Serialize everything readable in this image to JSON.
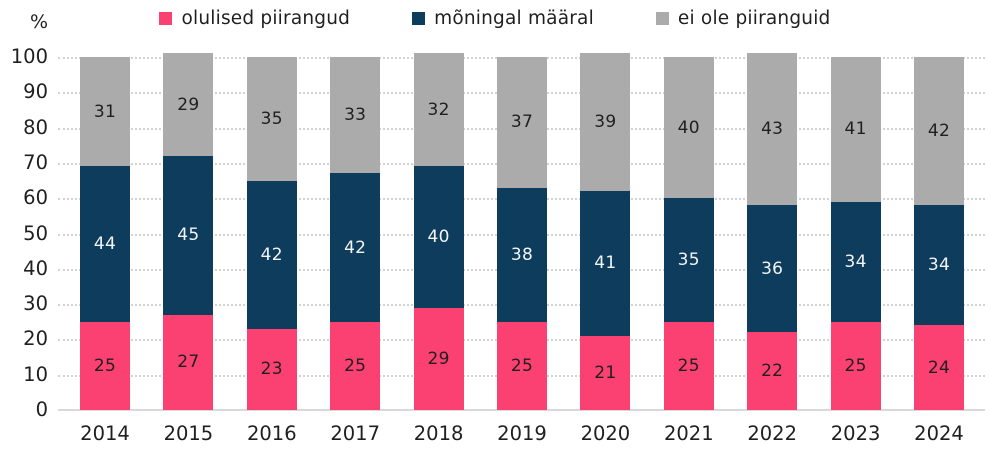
{
  "chart_data": {
    "type": "bar",
    "stacked": true,
    "title": "",
    "unit_label": "%",
    "categories": [
      "2014",
      "2015",
      "2016",
      "2017",
      "2018",
      "2019",
      "2020",
      "2021",
      "2022",
      "2023",
      "2024"
    ],
    "series": [
      {
        "name": "olulised piirangud",
        "color": "#fb4072",
        "label_color": "#1f1f1f",
        "values": [
          25,
          27,
          23,
          25,
          29,
          25,
          21,
          25,
          22,
          25,
          24
        ]
      },
      {
        "name": "mõningal määral",
        "color": "#0e3c5c",
        "label_color": "#f2f4f6",
        "values": [
          44,
          45,
          42,
          42,
          40,
          38,
          41,
          35,
          36,
          34,
          34
        ]
      },
      {
        "name": "ei ole piiranguid",
        "color": "#ababab",
        "label_color": "#1f1f1f",
        "values": [
          31,
          29,
          35,
          33,
          32,
          37,
          39,
          40,
          43,
          41,
          42
        ]
      }
    ],
    "ylim": [
      0,
      100
    ],
    "yticks": [
      0,
      10,
      20,
      30,
      40,
      50,
      60,
      70,
      80,
      90,
      100
    ],
    "grid": "horizontal-dotted",
    "legend_position": "top-center"
  },
  "colors": {
    "background": "#ffffff",
    "grid_line": "#d2d2d2",
    "axis_line": "#d9d9d9",
    "text": "#1f1f1f"
  }
}
